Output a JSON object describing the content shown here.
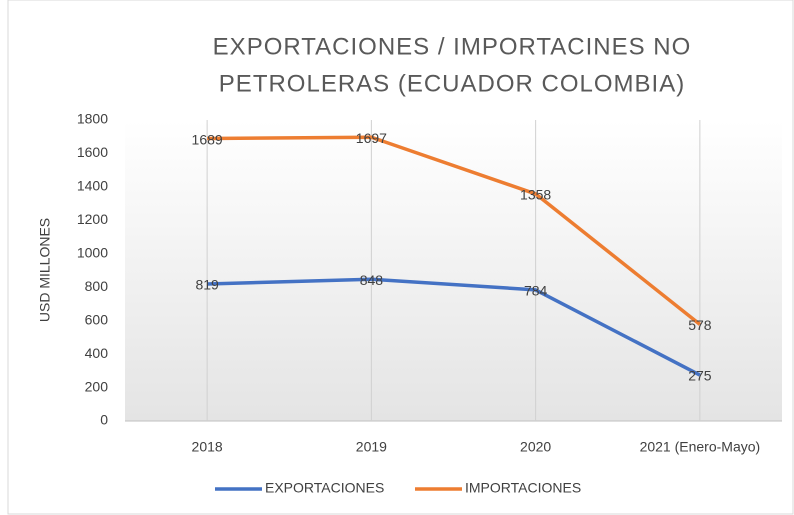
{
  "chart_data": {
    "type": "line",
    "title": [
      "EXPORTACIONES / IMPORTACINES  NO",
      "PETROLERAS (ECUADOR COLOMBIA)"
    ],
    "y_label": "USD MILLONES",
    "categories": [
      "2018",
      "2019",
      "2020",
      "2021 (Enero-Mayo)"
    ],
    "series": [
      {
        "name": "EXPORTACIONES",
        "color": "#4472c4",
        "values": [
          819,
          848,
          784,
          275
        ]
      },
      {
        "name": "IMPORTACIONES",
        "color": "#ed7d31",
        "values": [
          1689,
          1697,
          1358,
          578
        ]
      }
    ],
    "ylim": [
      0,
      1800
    ],
    "yticks": [
      0,
      200,
      400,
      600,
      800,
      1000,
      1200,
      1400,
      1600,
      1800
    ],
    "legend": "bottom"
  }
}
